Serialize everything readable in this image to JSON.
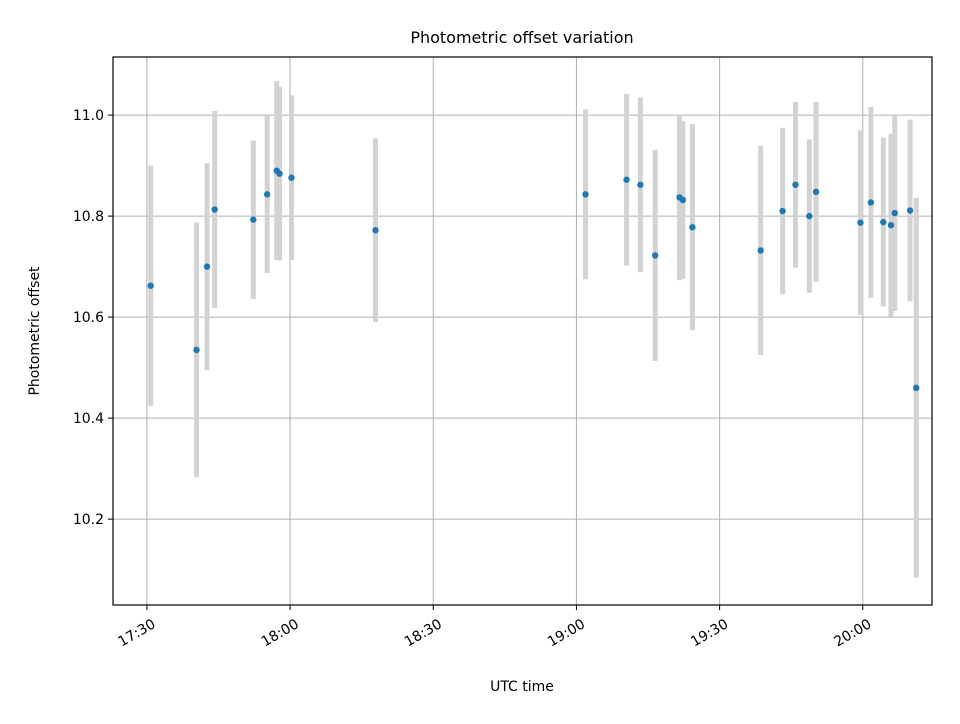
{
  "chart_data": {
    "type": "scatter",
    "title": "Photometric offset variation",
    "xlabel": "UTC time",
    "ylabel": "Photometric offset",
    "xlim_minutes": [
      1042.9,
      1214.5
    ],
    "ylim": [
      10.03,
      11.115
    ],
    "x_ticks": [
      {
        "label": "17:30",
        "minutes": 1050
      },
      {
        "label": "18:00",
        "minutes": 1080
      },
      {
        "label": "18:30",
        "minutes": 1110
      },
      {
        "label": "19:00",
        "minutes": 1140
      },
      {
        "label": "19:30",
        "minutes": 1170
      },
      {
        "label": "20:00",
        "minutes": 1200
      }
    ],
    "y_ticks": [
      10.2,
      10.4,
      10.6,
      10.8,
      11.0
    ],
    "grid": true,
    "colors": {
      "points": "#1f77b4",
      "errorbars": "#d3d3d3",
      "grid": "#b0b0b0",
      "axes": "#000000"
    },
    "series": [
      {
        "name": "offset",
        "points": [
          {
            "t": 1050.8,
            "y": 10.662,
            "err": 0.238
          },
          {
            "t": 1060.4,
            "y": 10.535,
            "err": 0.252
          },
          {
            "t": 1062.6,
            "y": 10.7,
            "err": 0.205
          },
          {
            "t": 1064.2,
            "y": 10.813,
            "err": 0.195
          },
          {
            "t": 1072.3,
            "y": 10.793,
            "err": 0.157
          },
          {
            "t": 1075.2,
            "y": 10.843,
            "err": 0.156
          },
          {
            "t": 1077.2,
            "y": 10.89,
            "err": 0.177
          },
          {
            "t": 1077.8,
            "y": 10.884,
            "err": 0.172
          },
          {
            "t": 1080.3,
            "y": 10.876,
            "err": 0.163
          },
          {
            "t": 1097.9,
            "y": 10.772,
            "err": 0.182
          },
          {
            "t": 1141.9,
            "y": 10.843,
            "err": 0.168
          },
          {
            "t": 1150.5,
            "y": 10.872,
            "err": 0.17
          },
          {
            "t": 1153.4,
            "y": 10.862,
            "err": 0.173
          },
          {
            "t": 1156.5,
            "y": 10.722,
            "err": 0.209
          },
          {
            "t": 1161.6,
            "y": 10.837,
            "err": 0.164
          },
          {
            "t": 1162.3,
            "y": 10.832,
            "err": 0.156
          },
          {
            "t": 1164.3,
            "y": 10.778,
            "err": 0.204
          },
          {
            "t": 1178.6,
            "y": 10.732,
            "err": 0.207
          },
          {
            "t": 1183.2,
            "y": 10.81,
            "err": 0.165
          },
          {
            "t": 1185.9,
            "y": 10.862,
            "err": 0.164
          },
          {
            "t": 1188.8,
            "y": 10.8,
            "err": 0.152
          },
          {
            "t": 1190.2,
            "y": 10.848,
            "err": 0.178
          },
          {
            "t": 1199.5,
            "y": 10.787,
            "err": 0.183
          },
          {
            "t": 1201.7,
            "y": 10.827,
            "err": 0.189
          },
          {
            "t": 1204.3,
            "y": 10.788,
            "err": 0.167
          },
          {
            "t": 1205.9,
            "y": 10.782,
            "err": 0.181
          },
          {
            "t": 1206.7,
            "y": 10.806,
            "err": 0.194
          },
          {
            "t": 1209.9,
            "y": 10.811,
            "err": 0.18
          },
          {
            "t": 1211.2,
            "y": 10.46,
            "err": 0.376
          }
        ]
      }
    ]
  }
}
